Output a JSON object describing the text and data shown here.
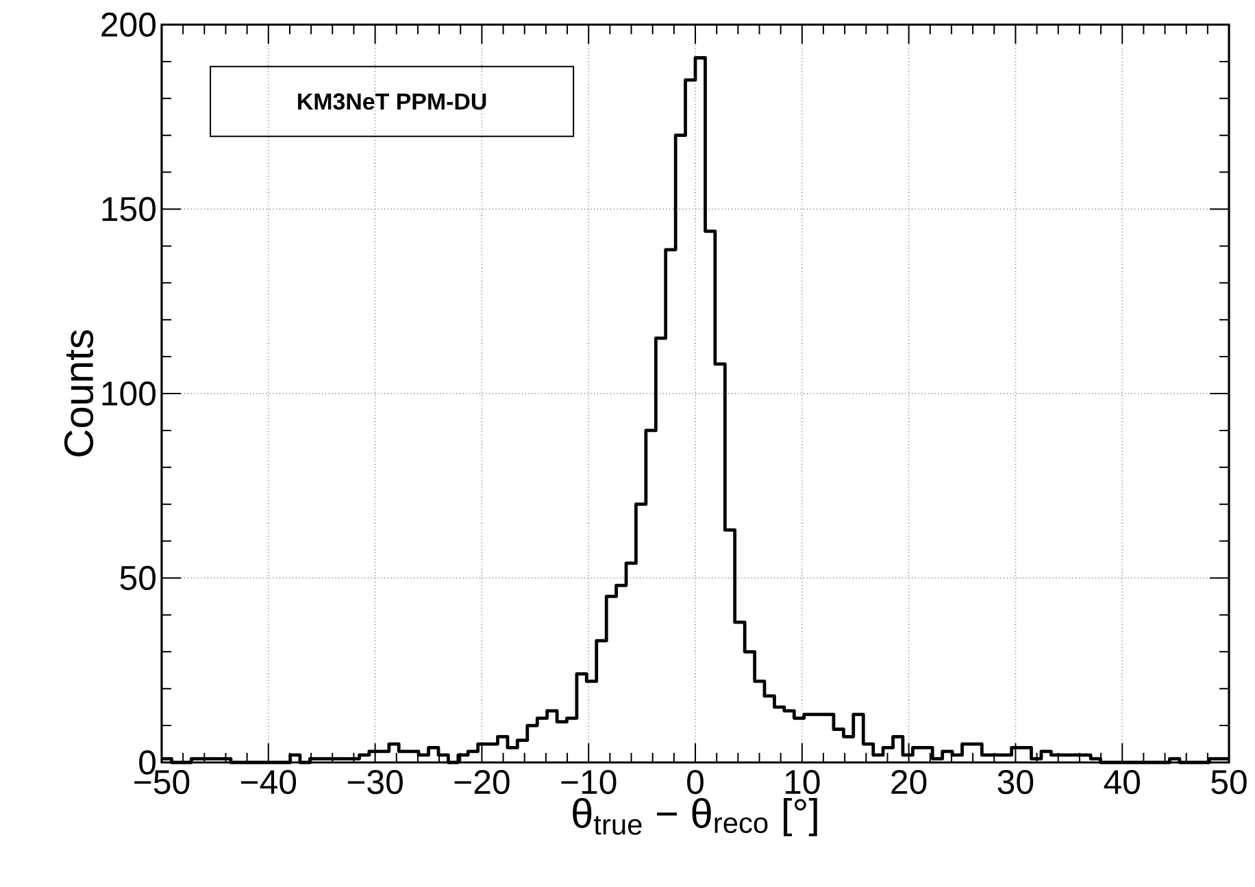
{
  "chart_data": {
    "type": "histogram",
    "xlabel": "θ$_{true}$ − θ$_{reco}$ [°]",
    "ylabel": "Counts",
    "annotations": [
      "KM3NeT PPM-DU"
    ],
    "color": "#000000",
    "bins": [
      -50,
      -49.07,
      -48.15,
      -47.22,
      -46.3,
      -45.37,
      -44.44,
      -43.52,
      -42.59,
      -41.67,
      -40.74,
      -39.81,
      -38.89,
      -37.96,
      -37.04,
      -36.11,
      -35.19,
      -34.26,
      -33.33,
      -32.41,
      -31.48,
      -30.56,
      -29.63,
      -28.7,
      -27.78,
      -26.85,
      -25.93,
      -25.0,
      -24.07,
      -23.15,
      -22.22,
      -21.3,
      -20.37,
      -19.44,
      -18.52,
      -17.59,
      -16.67,
      -15.74,
      -14.81,
      -13.89,
      -12.96,
      -12.04,
      -11.11,
      -10.19,
      -9.26,
      -8.33,
      -7.41,
      -6.48,
      -5.56,
      -4.63,
      -3.7,
      -2.78,
      -1.85,
      -0.93,
      0,
      0.93,
      1.85,
      2.78,
      3.7,
      4.63,
      5.56,
      6.48,
      7.41,
      8.33,
      9.26,
      10.19,
      11.11,
      12.04,
      12.96,
      13.89,
      14.81,
      15.74,
      16.67,
      17.59,
      18.52,
      19.44,
      20.37,
      21.3,
      22.22,
      23.15,
      24.07,
      25.0,
      25.93,
      26.85,
      27.78,
      28.7,
      29.63,
      30.56,
      31.48,
      32.41,
      33.33,
      34.26,
      35.19,
      36.11,
      37.04,
      37.96,
      38.89,
      39.81,
      40.74,
      41.67,
      42.59,
      43.52,
      44.44,
      45.37,
      46.3,
      47.22,
      48.15,
      49.07,
      50
    ],
    "values": [
      1,
      0,
      0,
      1,
      1,
      1,
      1,
      0,
      0,
      0,
      0,
      0,
      0,
      2,
      0,
      1,
      1,
      1,
      1,
      1,
      2,
      3,
      3,
      5,
      3,
      3,
      2,
      4,
      2,
      0,
      2,
      3,
      5,
      5,
      7,
      4,
      6,
      10,
      12,
      14,
      11,
      12,
      24,
      22,
      33,
      45,
      48,
      54,
      70,
      90,
      115,
      139,
      170,
      185,
      191,
      144,
      108,
      63,
      38,
      30,
      22,
      18,
      15,
      14,
      12,
      13,
      13,
      13,
      9,
      7,
      13,
      5,
      2,
      4,
      7,
      2,
      4,
      4,
      1,
      3,
      2,
      5,
      5,
      2,
      2,
      2,
      4,
      4,
      1,
      3,
      2,
      2,
      2,
      2,
      1,
      0,
      0,
      0,
      0,
      0,
      0,
      0,
      1,
      0,
      0,
      0,
      1,
      1
    ],
    "xlim": [
      -50,
      50
    ],
    "ylim": [
      0,
      200
    ],
    "xticks": [
      {
        "value": -50,
        "label": "−50"
      },
      {
        "value": -40,
        "label": "−40"
      },
      {
        "value": -30,
        "label": "−30"
      },
      {
        "value": -20,
        "label": "−20"
      },
      {
        "value": -10,
        "label": "−10"
      },
      0,
      10,
      20,
      30,
      40,
      50
    ],
    "yticks": [
      0,
      50,
      100,
      150,
      200
    ],
    "grid": true
  }
}
